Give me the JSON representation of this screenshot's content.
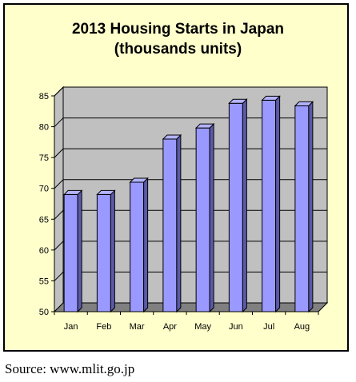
{
  "source": "Source: www.mlit.go.jp",
  "chart_data": {
    "type": "bar",
    "title": "2013 Housing Starts in Japan",
    "subtitle": "(thousands units)",
    "categories": [
      "Jan",
      "Feb",
      "Mar",
      "Apr",
      "May",
      "Jun",
      "Jul",
      "Aug"
    ],
    "values": [
      69.0,
      69.0,
      71.0,
      78.0,
      79.8,
      83.8,
      84.3,
      83.4
    ],
    "xlabel": "",
    "ylabel": "",
    "ylim": [
      50,
      85
    ],
    "yticks": [
      50,
      55,
      60,
      65,
      70,
      75,
      80,
      85
    ],
    "grid": true,
    "legend": "none",
    "style": "3d",
    "colors": {
      "bar_front": "#9999ff",
      "bar_side": "#5a5aa8",
      "bar_top": "#b3b3ff",
      "wall": "#c0c0c0",
      "floor": "#808080",
      "frame_background": "#ffffcc"
    }
  }
}
